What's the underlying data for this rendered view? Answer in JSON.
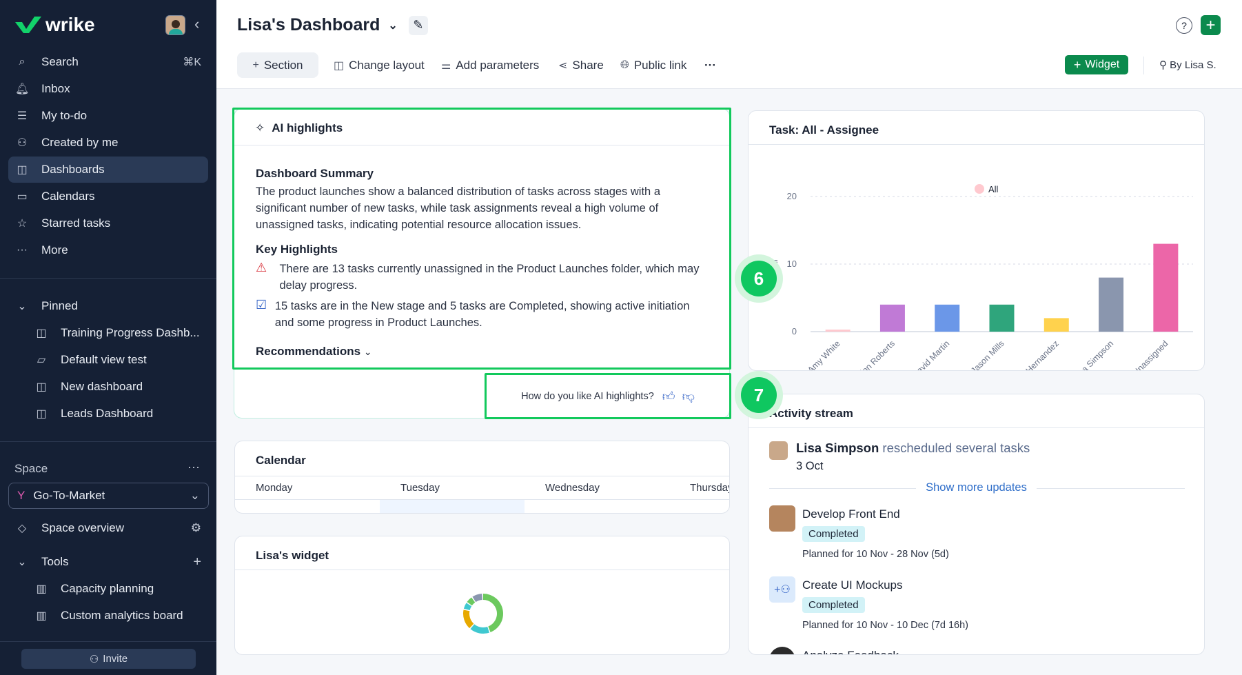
{
  "sidebar": {
    "brand": "wrike",
    "search": "Search",
    "search_shortcut": "⌘K",
    "nav": [
      {
        "label": "Inbox",
        "icon": "bell-icon"
      },
      {
        "label": "My to-do",
        "icon": "todo-icon"
      },
      {
        "label": "Created by me",
        "icon": "user-arrow-icon"
      },
      {
        "label": "Dashboards",
        "icon": "dashboard-icon",
        "selected": true
      },
      {
        "label": "Calendars",
        "icon": "calendar-icon"
      },
      {
        "label": "Starred tasks",
        "icon": "star-icon"
      },
      {
        "label": "More",
        "icon": "more-icon"
      }
    ],
    "pinned_label": "Pinned",
    "pinned": [
      {
        "label": "Training Progress Dashb...",
        "icon": "dashboard-icon"
      },
      {
        "label": "Default view test",
        "icon": "folder-icon"
      },
      {
        "label": "New dashboard",
        "icon": "dashboard-icon"
      },
      {
        "label": "Leads Dashboard",
        "icon": "dashboard-icon"
      }
    ],
    "space_label": "Space",
    "space_selected": "Go-To-Market",
    "space_overview": "Space overview",
    "tools_label": "Tools",
    "tools": [
      "Capacity planning",
      "Custom analytics board"
    ],
    "invite": "Invite"
  },
  "header": {
    "title": "Lisa's Dashboard",
    "toolbar": {
      "section": "Section",
      "change_layout": "Change layout",
      "add_parameters": "Add parameters",
      "share": "Share",
      "public_link": "Public link",
      "widget": "Widget",
      "owner": "By Lisa S."
    }
  },
  "ai": {
    "title": "AI highlights",
    "summary_heading": "Dashboard Summary",
    "summary": "The product launches show a balanced distribution of tasks across stages with a significant number of new tasks, while task assignments reveal a high volume of unassigned tasks, indicating potential resource allocation issues.",
    "key_heading": "Key Highlights",
    "highlights": [
      "There are 13 tasks currently unassigned in the Product Launches folder, which may delay progress.",
      "15 tasks are in the New stage and 5 tasks are Completed, showing active initiation and some progress in Product Launches."
    ],
    "recommendations": "Recommendations",
    "feedback": "How do you like AI highlights?"
  },
  "badges": [
    "6",
    "7"
  ],
  "calendar": {
    "title": "Calendar",
    "days": [
      "Monday",
      "Tuesday",
      "Wednesday",
      "Thursday"
    ]
  },
  "lisa_widget": {
    "title": "Lisa's widget",
    "donut": [
      {
        "value": 45,
        "color": "#6cc95e"
      },
      {
        "value": 17,
        "color": "#3fc8d0"
      },
      {
        "value": 17,
        "color": "#e7a900"
      },
      {
        "value": 6,
        "color": "#3fc8d0"
      },
      {
        "value": 6,
        "color": "#6cc95e"
      },
      {
        "value": 9,
        "color": "#8a96ae"
      }
    ]
  },
  "chart_data": {
    "type": "bar",
    "title": "Task: All - Assignee",
    "legend": [
      "All"
    ],
    "legend_color": "#ffc9cf",
    "legend_placement": "top-center",
    "ylabel": "All",
    "ylim": [
      0,
      20
    ],
    "yticks": [
      0,
      10,
      20
    ],
    "grid": true,
    "categories": [
      "Amy White",
      "Brandon Roberts",
      "David Martin",
      "Jason Mills",
      "Julia Hernandez",
      "Lisa Simpson",
      "Unassigned"
    ],
    "values": [
      0,
      4,
      4,
      4,
      2,
      8,
      13
    ],
    "colors": [
      "#ffc9cf",
      "#c07ad6",
      "#6b97e8",
      "#2fa57c",
      "#ffd24d",
      "#8a96ae",
      "#ec66a8"
    ]
  },
  "activity": {
    "title": "Activity stream",
    "headline_user": "Lisa Simpson",
    "headline_action": "rescheduled several tasks",
    "headline_date": "3 Oct",
    "show_more": "Show more updates",
    "items": [
      {
        "task": "Develop Front End",
        "status": "Completed",
        "planned": "Planned for 10 Nov - 28 Nov (5d)"
      },
      {
        "task": "Create UI Mockups",
        "status": "Completed",
        "planned": "Planned for 10 Nov - 10 Dec (7d 16h)"
      },
      {
        "task": "Analyze Feedback"
      }
    ]
  }
}
